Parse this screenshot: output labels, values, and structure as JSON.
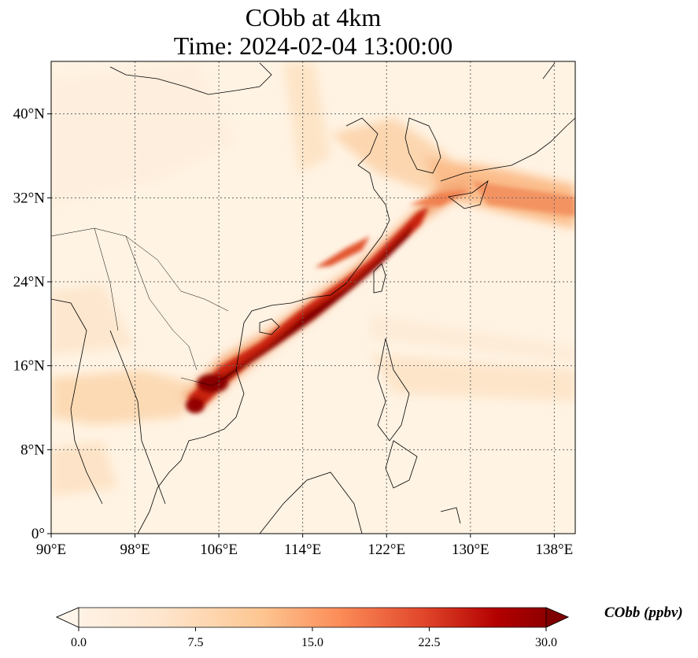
{
  "title": {
    "line1": "CObb at 4km",
    "line2": "Time: 2024-02-04 13:00:00"
  },
  "map": {
    "lon_range": [
      90,
      140
    ],
    "lat_range": [
      0,
      45
    ],
    "lon_ticks": [
      {
        "value": 90,
        "label": "90°E"
      },
      {
        "value": 98,
        "label": "98°E"
      },
      {
        "value": 106,
        "label": "106°E"
      },
      {
        "value": 114,
        "label": "114°E"
      },
      {
        "value": 122,
        "label": "122°E"
      },
      {
        "value": 130,
        "label": "130°E"
      },
      {
        "value": 138,
        "label": "138°E"
      }
    ],
    "lat_ticks": [
      {
        "value": 0,
        "label": "0°"
      },
      {
        "value": 8,
        "label": "8°N"
      },
      {
        "value": 16,
        "label": "16°N"
      },
      {
        "value": 24,
        "label": "24°N"
      },
      {
        "value": 32,
        "label": "32°N"
      },
      {
        "value": 40,
        "label": "40°N"
      }
    ],
    "gridlines": true,
    "colormap": [
      "#fff5eb",
      "#fdd9b4",
      "#fdae6b",
      "#f06d3a",
      "#c21a0b",
      "#7f0000"
    ]
  },
  "colorbar": {
    "label": "CObb (ppbv)",
    "range": [
      0,
      30
    ],
    "ticks": [
      {
        "value": 0,
        "label": "0.0"
      },
      {
        "value": 7.5,
        "label": "7.5"
      },
      {
        "value": 15,
        "label": "15.0"
      },
      {
        "value": 22.5,
        "label": "22.5"
      },
      {
        "value": 30,
        "label": "30.0"
      }
    ]
  }
}
